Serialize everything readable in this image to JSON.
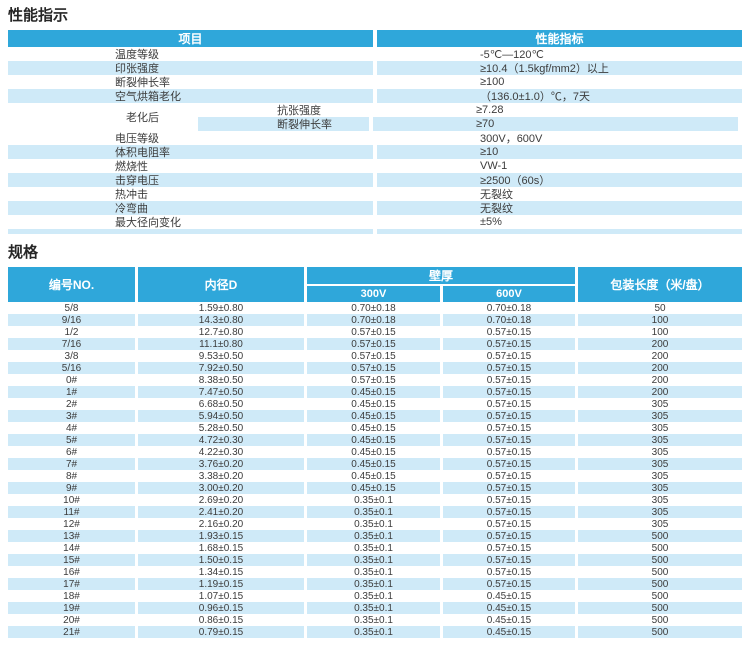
{
  "colors": {
    "header_blue": "#2fa7da",
    "row_alt_blue": "#cfeaf8",
    "text": "#3c3c3c",
    "background": "#ffffff"
  },
  "performance": {
    "title": "性能指示",
    "columns": {
      "item": "项目",
      "index": "性能指标"
    },
    "rows": [
      {
        "item": "温度等级",
        "value": "-5℃—120℃"
      },
      {
        "item": "印张强度",
        "value": "≥10.4（1.5kgf/mm2）以上"
      },
      {
        "item": "断裂伸长率",
        "value": "≥100"
      },
      {
        "item": "空气烘箱老化",
        "value": "（136.0±1.0）℃，7天"
      },
      {
        "item": "老化后",
        "sub": [
          {
            "item": "抗张强度",
            "value": "≥7.28"
          },
          {
            "item": "断裂伸长率",
            "value": "≥70"
          }
        ]
      },
      {
        "item": "电压等级",
        "value": "300V，600V"
      },
      {
        "item": "体积电阻率",
        "value": "≥10"
      },
      {
        "item": "燃烧性",
        "value": "VW-1"
      },
      {
        "item": "击穿电压",
        "value": "≥2500（60s）"
      },
      {
        "item": "热冲击",
        "value": "无裂纹"
      },
      {
        "item": "冷弯曲",
        "value": "无裂纹"
      },
      {
        "item": "最大径向变化",
        "value": "±5%"
      }
    ]
  },
  "spec": {
    "title": "规格",
    "columns": {
      "no": "编号NO.",
      "inner_d": "内径D",
      "wall": "壁厚",
      "v300": "300V",
      "v600": "600V",
      "length": "包装长度（米/盘）"
    },
    "rows": [
      [
        "5/8",
        "1.59±0.80",
        "0.70±0.18",
        "0.70±0.18",
        "50"
      ],
      [
        "9/16",
        "14.3±0.80",
        "0.70±0.18",
        "0.70±0.18",
        "100"
      ],
      [
        "1/2",
        "12.7±0.80",
        "0.57±0.15",
        "0.57±0.15",
        "100"
      ],
      [
        "7/16",
        "11.1±0.80",
        "0.57±0.15",
        "0.57±0.15",
        "200"
      ],
      [
        "3/8",
        "9.53±0.50",
        "0.57±0.15",
        "0.57±0.15",
        "200"
      ],
      [
        "5/16",
        "7.92±0.50",
        "0.57±0.15",
        "0.57±0.15",
        "200"
      ],
      [
        "0#",
        "8.38±0.50",
        "0.57±0.15",
        "0.57±0.15",
        "200"
      ],
      [
        "1#",
        "7.47±0.50",
        "0.45±0.15",
        "0.57±0.15",
        "200"
      ],
      [
        "2#",
        "6.68±0.50",
        "0.45±0.15",
        "0.57±0.15",
        "305"
      ],
      [
        "3#",
        "5.94±0.50",
        "0.45±0.15",
        "0.57±0.15",
        "305"
      ],
      [
        "4#",
        "5.28±0.50",
        "0.45±0.15",
        "0.57±0.15",
        "305"
      ],
      [
        "5#",
        "4.72±0.30",
        "0.45±0.15",
        "0.57±0.15",
        "305"
      ],
      [
        "6#",
        "4.22±0.30",
        "0.45±0.15",
        "0.57±0.15",
        "305"
      ],
      [
        "7#",
        "3.76±0.20",
        "0.45±0.15",
        "0.57±0.15",
        "305"
      ],
      [
        "8#",
        "3.38±0.20",
        "0.45±0.15",
        "0.57±0.15",
        "305"
      ],
      [
        "9#",
        "3.00±0.20",
        "0.45±0.15",
        "0.57±0.15",
        "305"
      ],
      [
        "10#",
        "2.69±0.20",
        "0.35±0.1",
        "0.57±0.15",
        "305"
      ],
      [
        "11#",
        "2.41±0.20",
        "0.35±0.1",
        "0.57±0.15",
        "305"
      ],
      [
        "12#",
        "2.16±0.20",
        "0.35±0.1",
        "0.57±0.15",
        "305"
      ],
      [
        "13#",
        "1.93±0.15",
        "0.35±0.1",
        "0.57±0.15",
        "500"
      ],
      [
        "14#",
        "1.68±0.15",
        "0.35±0.1",
        "0.57±0.15",
        "500"
      ],
      [
        "15#",
        "1.50±0.15",
        "0.35±0.1",
        "0.57±0.15",
        "500"
      ],
      [
        "16#",
        "1.34±0.15",
        "0.35±0.1",
        "0.57±0.15",
        "500"
      ],
      [
        "17#",
        "1.19±0.15",
        "0.35±0.1",
        "0.57±0.15",
        "500"
      ],
      [
        "18#",
        "1.07±0.15",
        "0.35±0.1",
        "0.45±0.15",
        "500"
      ],
      [
        "19#",
        "0.96±0.15",
        "0.35±0.1",
        "0.45±0.15",
        "500"
      ],
      [
        "20#",
        "0.86±0.15",
        "0.35±0.1",
        "0.45±0.15",
        "500"
      ],
      [
        "21#",
        "0.79±0.15",
        "0.35±0.1",
        "0.45±0.15",
        "500"
      ]
    ]
  }
}
